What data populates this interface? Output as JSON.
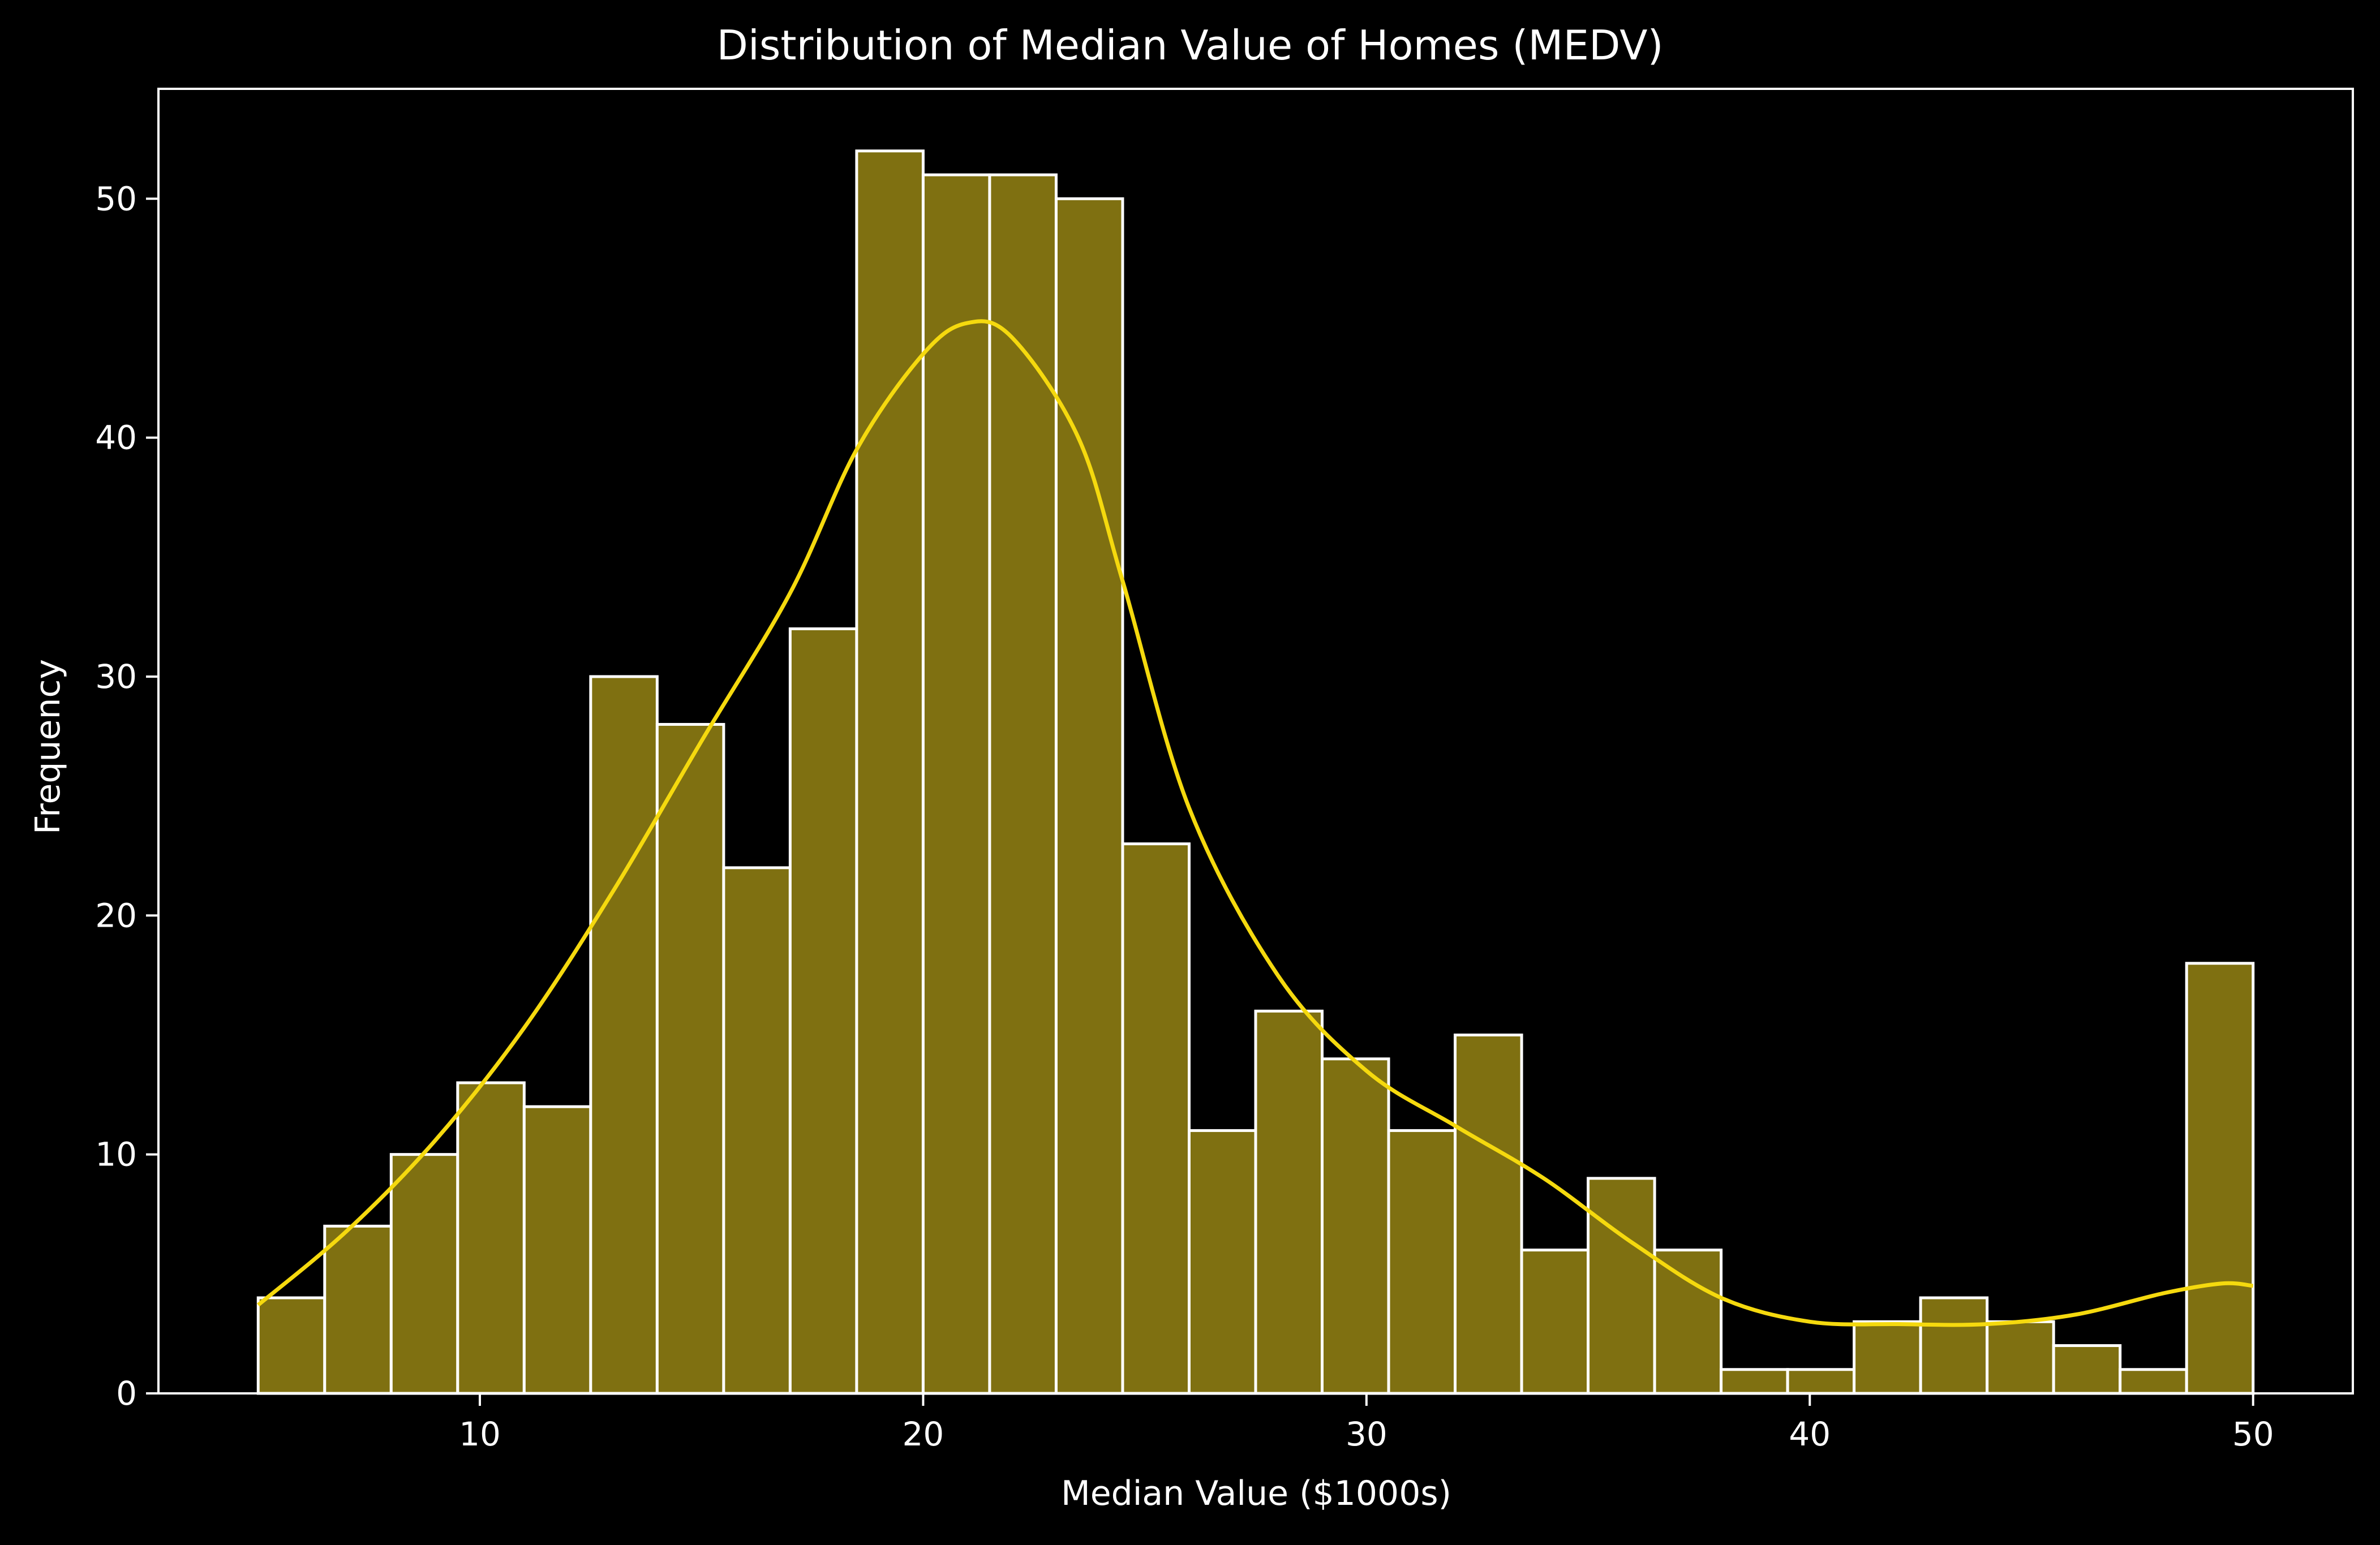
{
  "chart_data": {
    "type": "histogram",
    "title": "Distribution of Median Value of Homes (MEDV)",
    "xlabel": "Median Value ($1000s)",
    "ylabel": "Frequency",
    "xlim": [
      2.75,
      52.25
    ],
    "ylim": [
      0,
      54.6
    ],
    "x_ticks": [
      10,
      20,
      30,
      40,
      50
    ],
    "y_ticks": [
      0,
      10,
      20,
      30,
      40,
      50
    ],
    "bins": {
      "start": 5.0,
      "end": 50.0,
      "count": 30,
      "counts": [
        4,
        7,
        10,
        13,
        12,
        30,
        28,
        22,
        32,
        52,
        51,
        51,
        50,
        23,
        11,
        16,
        14,
        11,
        15,
        6,
        9,
        6,
        1,
        1,
        3,
        4,
        3,
        2,
        1,
        18
      ]
    },
    "kde": {
      "x": [
        5.0,
        7.0,
        9.0,
        11.0,
        13.0,
        15.0,
        17.0,
        18.5,
        20.0,
        21.0,
        22.0,
        23.5,
        24.5,
        26.0,
        28.0,
        30.0,
        32.0,
        34.0,
        36.0,
        38.0,
        40.0,
        42.0,
        44.0,
        46.0,
        48.0,
        49.3,
        50.0
      ],
      "y": [
        3.7,
        6.8,
        10.6,
        15.3,
        21.0,
        27.3,
        33.5,
        39.5,
        43.5,
        44.8,
        44.2,
        40.0,
        34.0,
        24.5,
        17.5,
        13.5,
        11.2,
        9.0,
        6.3,
        4.0,
        3.0,
        2.9,
        2.9,
        3.3,
        4.2,
        4.6,
        4.5
      ]
    },
    "colors": {
      "background": "#000000",
      "bar_fill": "#7f7011",
      "bar_edge": "#ffffff",
      "kde_line": "#f5d90e",
      "axes": "#ffffff",
      "text": "#ffffff"
    },
    "grid": false,
    "legend": null
  }
}
